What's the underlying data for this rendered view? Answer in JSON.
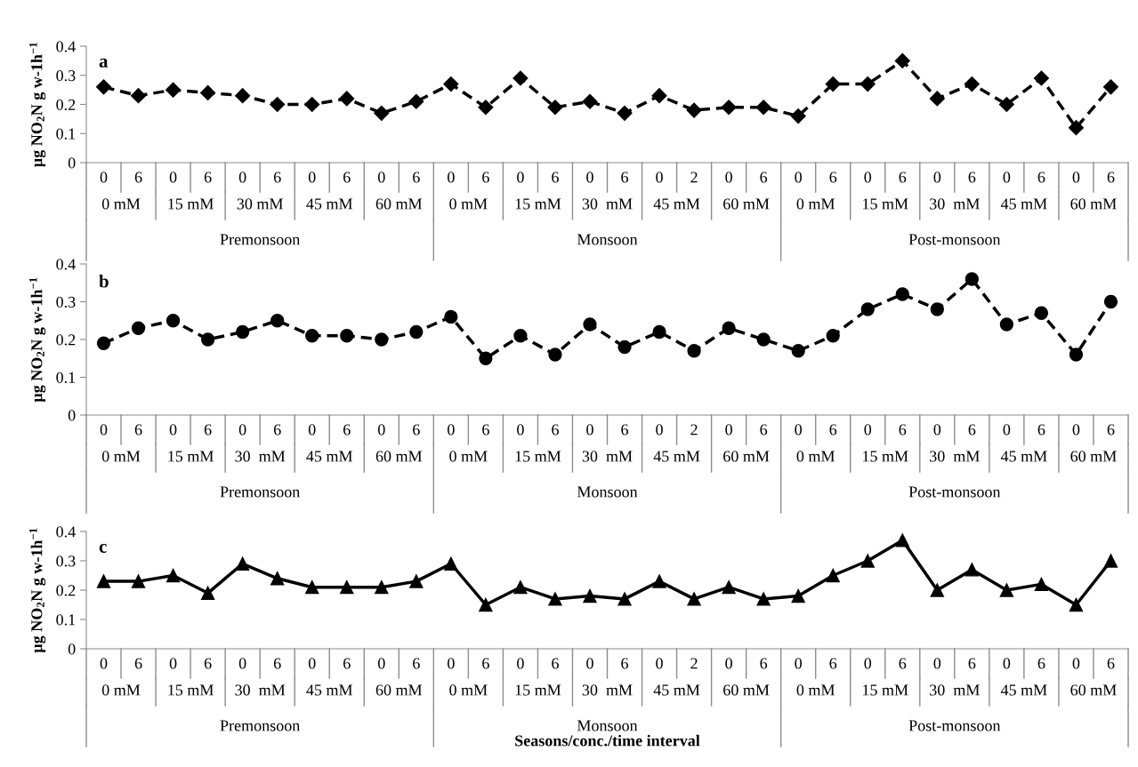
{
  "chart_data": [
    {
      "type": "line",
      "title": "a",
      "ylabel": "µg NO$_{2}$N g w-1h$^{−1}$",
      "marker": "diamond",
      "line_style": "dashed",
      "categories": [
        "0",
        "6",
        "0",
        "6",
        "0",
        "6",
        "0",
        "6",
        "0",
        "6",
        "0",
        "6",
        "0",
        "6",
        "0",
        "6",
        "0",
        "2",
        "0",
        "6",
        "0",
        "6",
        "0",
        "6",
        "0",
        "6",
        "0",
        "6",
        "0",
        "6"
      ],
      "series": [
        {
          "color": "#000000",
          "values": [
            0.26,
            0.23,
            0.25,
            0.24,
            0.23,
            0.2,
            0.2,
            0.22,
            0.17,
            0.21,
            0.27,
            0.19,
            0.29,
            0.19,
            0.21,
            0.17,
            0.23,
            0.18,
            0.19,
            0.19,
            0.16,
            0.27,
            0.27,
            0.35,
            0.22,
            0.27,
            0.2,
            0.29,
            0.12,
            0.26
          ]
        }
      ],
      "ylim": [
        0,
        0.4
      ],
      "yticks": [
        0,
        0.1,
        0.2,
        0.3,
        0.4
      ],
      "annotations": [
        "0 mM",
        "15 mM",
        "30 mM",
        "45 mM",
        "60 mM",
        "0 mM",
        "15 mM",
        "30  mM",
        "45 mM",
        "60 mM",
        "0 mM",
        "15 mM",
        "30  mM",
        "45 mM",
        "60 mM",
        "Premonsoon",
        "Monsoon",
        "Post-monsoon"
      ]
    },
    {
      "type": "line",
      "title": "b",
      "ylabel": "µg NO$_{2}$N g w-1h$^{−1}$",
      "marker": "circle",
      "line_style": "dashed",
      "categories": [
        "0",
        "6",
        "0",
        "6",
        "0",
        "6",
        "0",
        "6",
        "0",
        "6",
        "0",
        "6",
        "0",
        "6",
        "0",
        "6",
        "0",
        "2",
        "0",
        "6",
        "0",
        "6",
        "0",
        "6",
        "0",
        "6",
        "0",
        "6",
        "0",
        "6"
      ],
      "series": [
        {
          "color": "#000000",
          "values": [
            0.19,
            0.23,
            0.25,
            0.2,
            0.22,
            0.25,
            0.21,
            0.21,
            0.2,
            0.22,
            0.26,
            0.15,
            0.21,
            0.16,
            0.24,
            0.18,
            0.22,
            0.17,
            0.23,
            0.2,
            0.17,
            0.21,
            0.28,
            0.32,
            0.28,
            0.36,
            0.24,
            0.27,
            0.16,
            0.3
          ]
        }
      ],
      "ylim": [
        0,
        0.4
      ],
      "yticks": [
        0,
        0.1,
        0.2,
        0.3,
        0.4
      ],
      "annotations": [
        "0 mM",
        "15 mM",
        "30  mM",
        "45 mM",
        "60 mM",
        "0 mM",
        "15 mM",
        "30  mM",
        "45 mM",
        "60 mM",
        "0 mM",
        "15 mM",
        "30  mM",
        "45 mM",
        "60 mM",
        "Premonsoon",
        "Monsoon",
        "Post-monsoon"
      ]
    },
    {
      "type": "line",
      "title": "c",
      "ylabel": "µg NO$_{2}$N g w-1h$^{−1}$",
      "xlabel": "Seasons/conc./time interval",
      "marker": "triangle",
      "line_style": "solid",
      "categories": [
        "0",
        "6",
        "0",
        "6",
        "0",
        "6",
        "0",
        "6",
        "0",
        "6",
        "0",
        "6",
        "0",
        "6",
        "0",
        "6",
        "0",
        "2",
        "0",
        "6",
        "0",
        "6",
        "0",
        "6",
        "0",
        "6",
        "0",
        "6",
        "0",
        "6"
      ],
      "series": [
        {
          "color": "#000000",
          "values": [
            0.23,
            0.23,
            0.25,
            0.19,
            0.29,
            0.24,
            0.21,
            0.21,
            0.21,
            0.23,
            0.29,
            0.15,
            0.21,
            0.17,
            0.18,
            0.17,
            0.23,
            0.17,
            0.21,
            0.17,
            0.18,
            0.25,
            0.3,
            0.37,
            0.2,
            0.27,
            0.2,
            0.22,
            0.15,
            0.3
          ]
        }
      ],
      "ylim": [
        0,
        0.4
      ],
      "yticks": [
        0,
        0.1,
        0.2,
        0.3,
        0.4
      ],
      "annotations": [
        "0 mM",
        "15 mM",
        "30  mM",
        "45 mM",
        "60 mM",
        "0 mM",
        "15 mM",
        "30  mM",
        "45 mM",
        "60 mM",
        "0 mM",
        "15 mM",
        "30  mM",
        "45 mM",
        "60 mM",
        "Premonsoon",
        "Monsoon",
        "Post-monsoon"
      ]
    }
  ]
}
